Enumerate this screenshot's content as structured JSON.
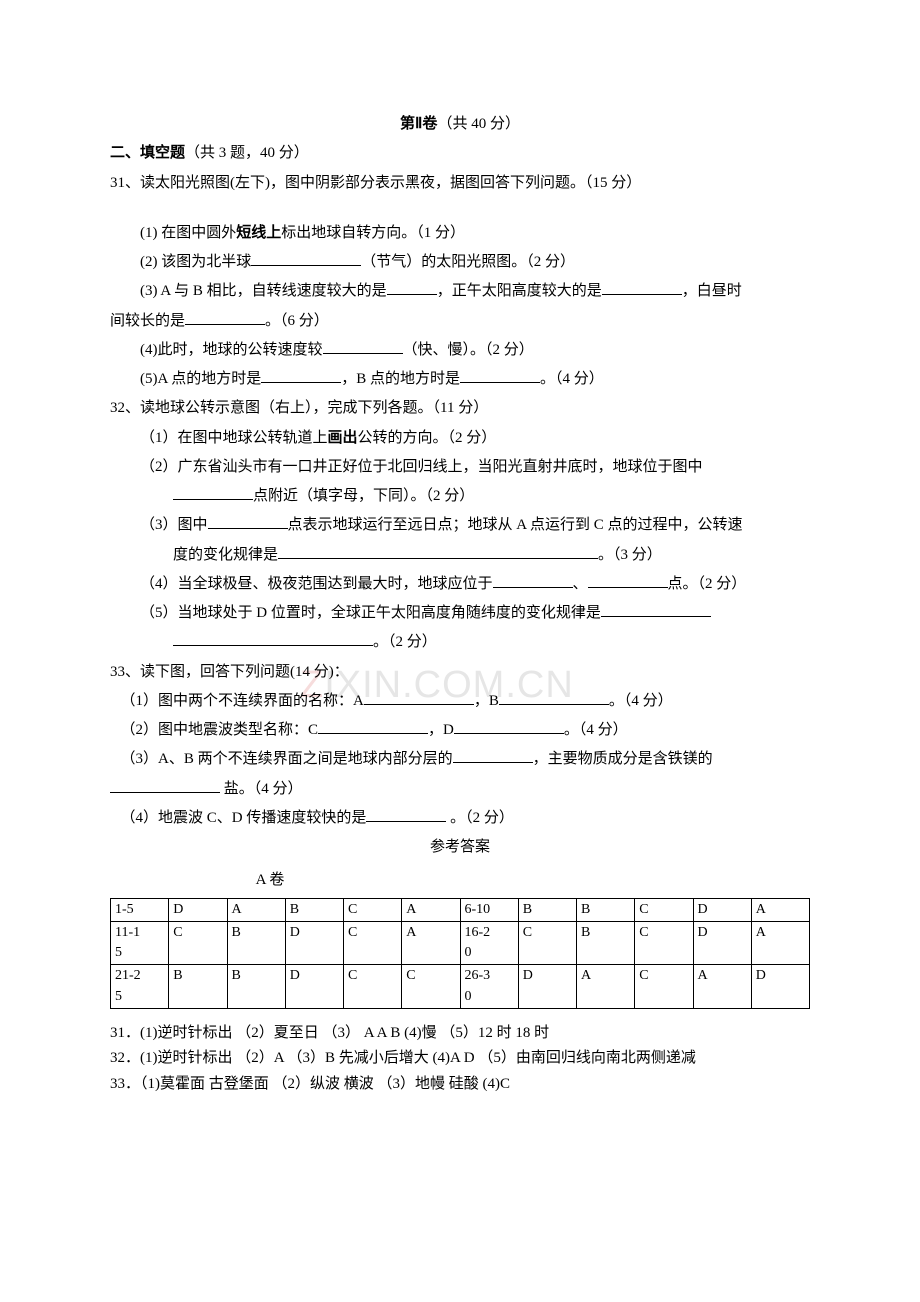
{
  "header": {
    "section_title_prefix": "第Ⅱ卷",
    "section_title_points": "（共 40 分）"
  },
  "part2": {
    "heading": "二、填空题",
    "heading_note": "（共 3 题，40 分）"
  },
  "q31": {
    "stem": "31、读太阳光照图(左下)，图中阴影部分表示黑夜，据图回答下列问题。（15 分）",
    "i1_a": "(1) 在图中圆外",
    "i1_b": "短线上",
    "i1_c": "标出地球自转方向。（1 分）",
    "i2_a": "(2) 该图为北半球",
    "i2_b": "（节气）的太阳光照图。（2 分）",
    "i3_a": "(3) A 与 B 相比，自转线速度较大的是",
    "i3_b": "，正午太阳高度较大的是",
    "i3_c": "，白昼时",
    "i3_line2_a": "间较长的是",
    "i3_line2_b": "。（6 分）",
    "i4_a": "(4)此时，地球的公转速度较",
    "i4_b": "（快、慢）。（2 分）",
    "i5_a": "(5)A 点的地方时是",
    "i5_b": "，B 点的地方时是",
    "i5_c": "。（4 分）"
  },
  "q32": {
    "stem": "32、读地球公转示意图（右上），完成下列各题。（11 分）",
    "i1_a": "（1）在图中地球公转轨道上",
    "i1_b": "画出",
    "i1_c": "公转的方向。（2 分）",
    "i2_a": "（2）广东省汕头市有一口井正好位于北回归线上，当阳光直射井底时，地球位于图中",
    "i2_line2": "点附近（填字母，下同）。（2 分）",
    "i3_a": "（3）图中",
    "i3_b": "点表示地球运行至远日点；地球从 A 点运行到 C 点的过程中，公转速",
    "i3_line2_a": "度的变化规律是",
    "i3_line2_b": "。（3 分）",
    "i4_a": "（4）当全球极昼、极夜范围达到最大时，地球应位于",
    "i4_b": "、",
    "i4_c": "点。（2 分）",
    "i5_a": "（5）当地球处于 D 位置时，全球正午太阳高度角随纬度的变化规律是",
    "i5_line2": "。（2 分）"
  },
  "q33": {
    "stem": "33、读下图，回答下列问题(14 分)：",
    "i1_a": "（1）图中两个不连续界面的名称：A",
    "i1_b": "，B",
    "i1_c": "。（4 分）",
    "i2_a": "（2）图中地震波类型名称：C",
    "i2_b": "，D",
    "i2_c": "。（4 分）",
    "i3_a": "（3）A、B 两个不连续界面之间是地球内部分层的",
    "i3_b": "，主要物质成分是含铁镁的",
    "i3_line2": " 盐。（4 分）",
    "i4_a": "（4）地震波 C、D 传播速度较快的是",
    "i4_b": " 。（2 分）"
  },
  "answers_title": "参考答案",
  "answers_subtitle": "A 卷",
  "table": {
    "r1": [
      "1-5",
      "D",
      "A",
      "B",
      "C",
      "A",
      "6-10",
      "B",
      "B",
      "C",
      "D",
      "A"
    ],
    "r2": [
      "11-1\n5",
      "C",
      "B",
      "D",
      "C",
      "A",
      "16-2\n0",
      "C",
      "B",
      "C",
      "D",
      "A"
    ],
    "r3": [
      "21-2\n5",
      "B",
      "B",
      "D",
      "C",
      "C",
      "26-3\n0",
      "D",
      "A",
      "C",
      "A",
      "D"
    ]
  },
  "ans": {
    "a31": "31．(1)逆时针标出  （2）夏至日   （3） A A B   (4)慢  （5）12 时   18 时",
    "a32": "32．(1)逆时针标出  （2）A  （3）B   先减小后增大  (4)A D   （5）由南回归线向南北两侧递减",
    "a33": "33．（1)莫霍面  古登堡面  （2）纵波  横波   （3）地幔  硅酸   (4)C"
  },
  "watermark": {
    "z": "Z",
    "rest": "IXIN.COM.CN"
  }
}
